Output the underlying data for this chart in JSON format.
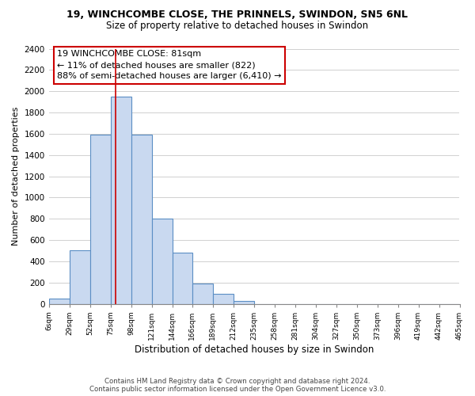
{
  "title": "19, WINCHCOMBE CLOSE, THE PRINNELS, SWINDON, SN5 6NL",
  "subtitle": "Size of property relative to detached houses in Swindon",
  "xlabel": "Distribution of detached houses by size in Swindon",
  "ylabel": "Number of detached properties",
  "bar_color": "#c9d9f0",
  "bar_edge_color": "#5b8ec4",
  "annotation_box_color": "#ffffff",
  "annotation_box_edge": "#cc0000",
  "vline_color": "#cc0000",
  "annotation_title": "19 WINCHCOMBE CLOSE: 81sqm",
  "annotation_line1": "← 11% of detached houses are smaller (822)",
  "annotation_line2": "88% of semi-detached houses are larger (6,410) →",
  "footer_line1": "Contains HM Land Registry data © Crown copyright and database right 2024.",
  "footer_line2": "Contains public sector information licensed under the Open Government Licence v3.0.",
  "bin_edges": [
    6,
    29,
    52,
    75,
    98,
    121,
    144,
    166,
    189,
    212,
    235,
    258,
    281,
    304,
    327,
    350,
    373,
    396,
    419,
    442,
    465
  ],
  "bin_values": [
    50,
    500,
    1590,
    1950,
    1590,
    800,
    480,
    190,
    90,
    30,
    0,
    0,
    0,
    0,
    0,
    0,
    0,
    0,
    0,
    0
  ],
  "vline_x": 81,
  "ylim": [
    0,
    2400
  ],
  "yticks": [
    0,
    200,
    400,
    600,
    800,
    1000,
    1200,
    1400,
    1600,
    1800,
    2000,
    2200,
    2400
  ],
  "xtick_labels": [
    "6sqm",
    "29sqm",
    "52sqm",
    "75sqm",
    "98sqm",
    "121sqm",
    "144sqm",
    "166sqm",
    "189sqm",
    "212sqm",
    "235sqm",
    "258sqm",
    "281sqm",
    "304sqm",
    "327sqm",
    "350sqm",
    "373sqm",
    "396sqm",
    "419sqm",
    "442sqm",
    "465sqm"
  ],
  "background_color": "#ffffff",
  "grid_color": "#d0d0d0"
}
